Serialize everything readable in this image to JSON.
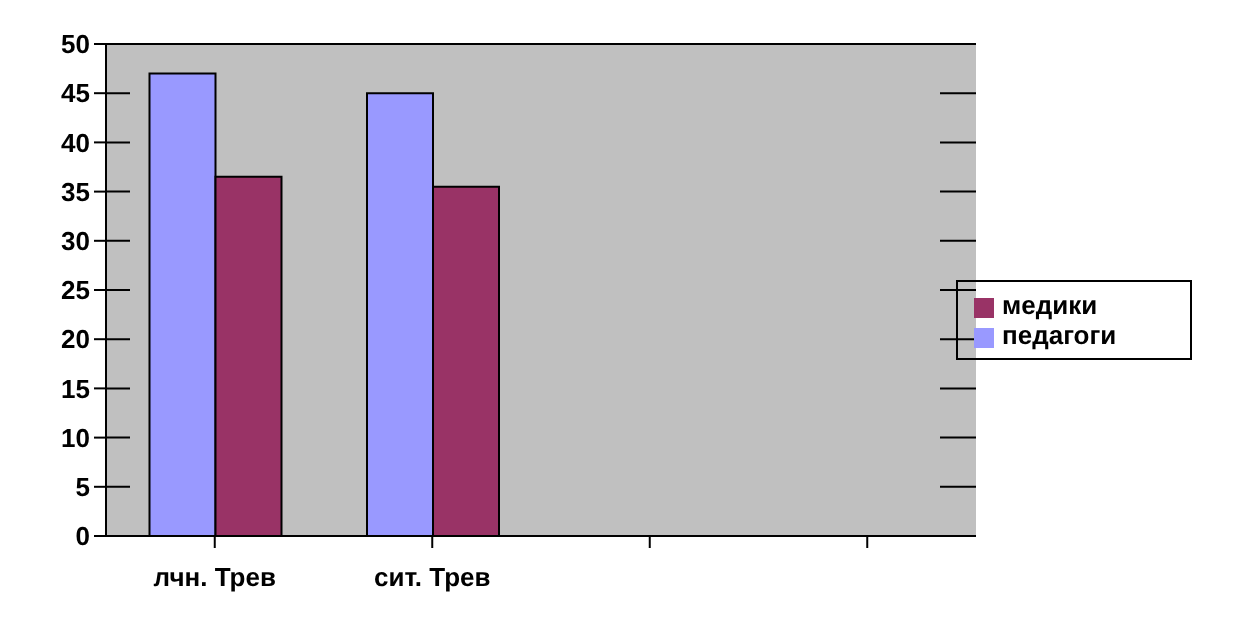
{
  "chart_data": {
    "type": "bar",
    "categories": [
      "лчн. Трев",
      "сит. Трев",
      null,
      null
    ],
    "series": [
      {
        "name": "педагоги",
        "color": "#9999ff",
        "values": [
          47,
          45,
          null,
          null
        ]
      },
      {
        "name": "медики",
        "color": "#993366",
        "values": [
          36.5,
          35.5,
          null,
          null
        ]
      }
    ],
    "ylim": [
      0,
      50
    ],
    "yticks": [
      0,
      5,
      10,
      15,
      20,
      25,
      30,
      35,
      40,
      45,
      50
    ],
    "grid": "y",
    "legend": "right"
  }
}
